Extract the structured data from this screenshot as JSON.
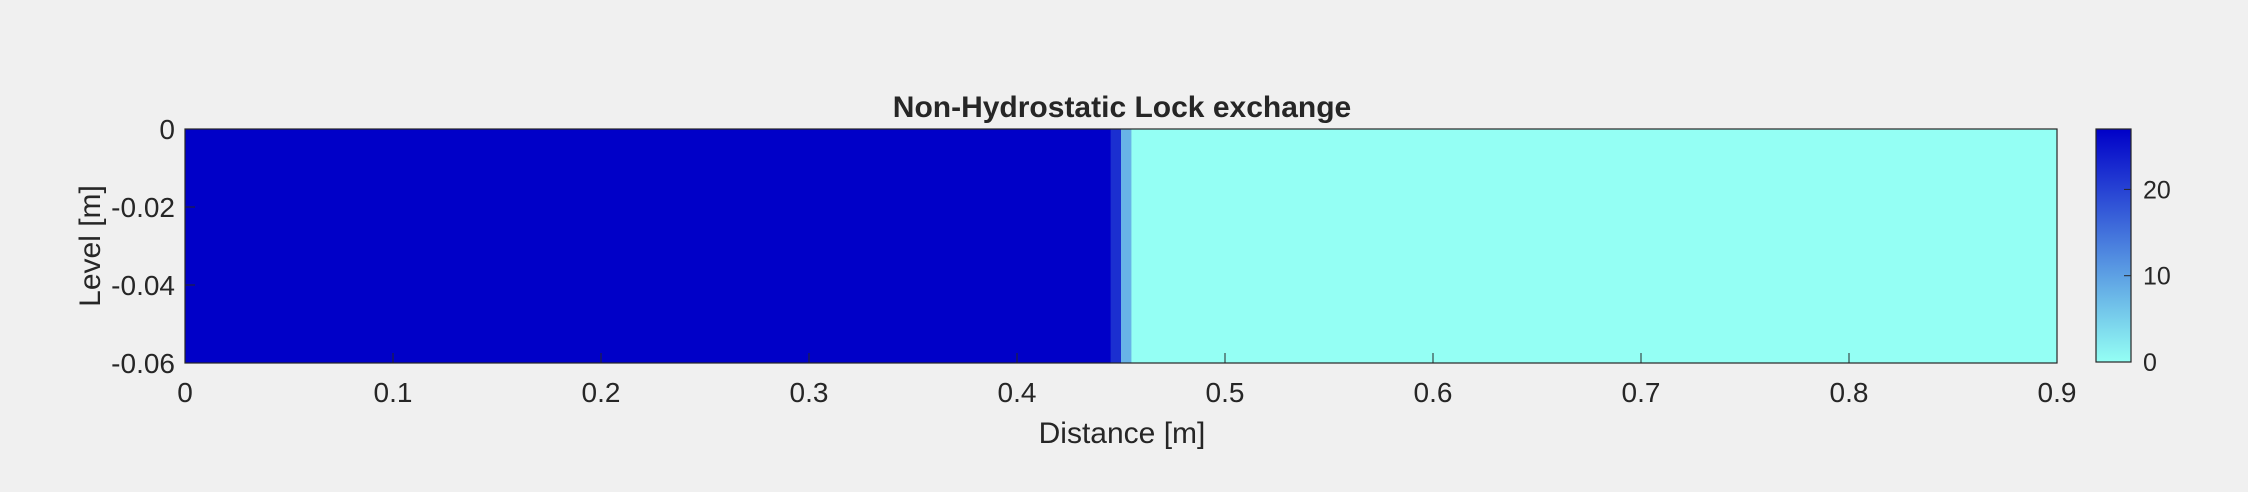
{
  "chart_data": {
    "type": "heatmap",
    "title": "Non-Hydrostatic Lock exchange",
    "xlabel": "Distance [m]",
    "ylabel": "Level [m]",
    "xlim": [
      0,
      0.9
    ],
    "ylim": [
      -0.06,
      0
    ],
    "xticks": [
      0,
      0.1,
      0.2,
      0.3,
      0.4,
      0.5,
      0.6,
      0.7,
      0.8,
      0.9
    ],
    "xtick_labels": [
      "0",
      "0.1",
      "0.2",
      "0.3",
      "0.4",
      "0.5",
      "0.6",
      "0.7",
      "0.8",
      "0.9"
    ],
    "yticks": [
      0,
      -0.02,
      -0.04,
      -0.06
    ],
    "ytick_labels": [
      "0",
      "-0.02",
      "-0.04",
      "-0.06"
    ],
    "columns": [
      {
        "x_start": 0,
        "x_end": 0.445,
        "value": 27
      },
      {
        "x_start": 0.445,
        "x_end": 0.45,
        "value": 22
      },
      {
        "x_start": 0.45,
        "x_end": 0.455,
        "value": 8
      },
      {
        "x_start": 0.455,
        "x_end": 0.9,
        "value": 0
      }
    ],
    "colorbar": {
      "limits": [
        0,
        27
      ],
      "ticks": [
        0,
        10,
        20
      ],
      "tick_labels": [
        "0",
        "10",
        "20"
      ],
      "colors": [
        "#94fff4",
        "#0000c8"
      ]
    }
  }
}
